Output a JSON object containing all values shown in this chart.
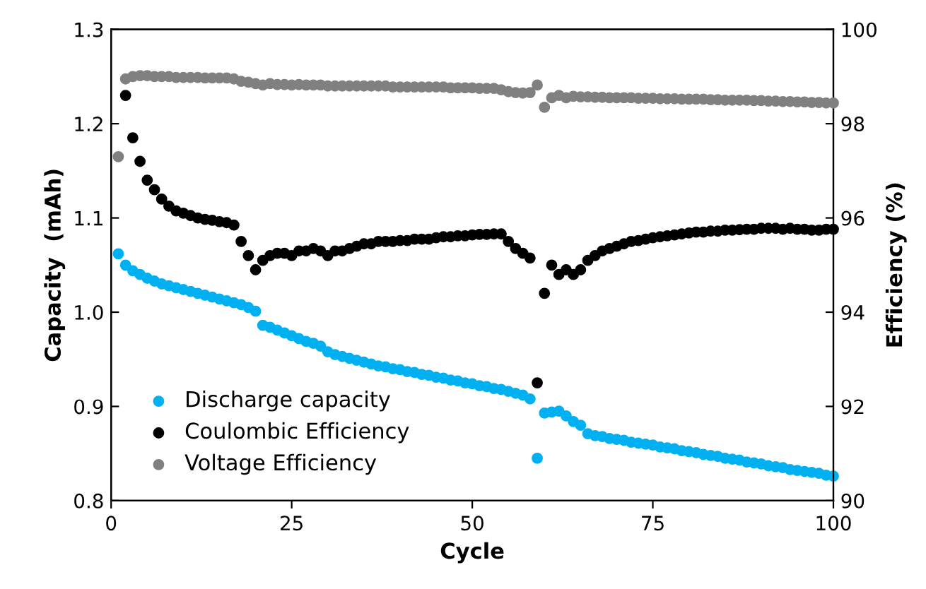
{
  "chart_data": {
    "type": "scatter",
    "xlabel": "Cycle",
    "ylabel": "Capacity  (mAh)",
    "y2label": "Efficiency (%)",
    "x": [
      1,
      2,
      3,
      4,
      5,
      6,
      7,
      8,
      9,
      10,
      11,
      12,
      13,
      14,
      15,
      16,
      17,
      18,
      19,
      20,
      21,
      22,
      23,
      24,
      25,
      26,
      27,
      28,
      29,
      30,
      31,
      32,
      33,
      34,
      35,
      36,
      37,
      38,
      39,
      40,
      41,
      42,
      43,
      44,
      45,
      46,
      47,
      48,
      49,
      50,
      51,
      52,
      53,
      54,
      55,
      56,
      57,
      58,
      59,
      60,
      61,
      62,
      63,
      64,
      65,
      66,
      67,
      68,
      69,
      70,
      71,
      72,
      73,
      74,
      75,
      76,
      77,
      78,
      79,
      80,
      81,
      82,
      83,
      84,
      85,
      86,
      87,
      88,
      89,
      90,
      91,
      92,
      93,
      94,
      95,
      96,
      97,
      98,
      99,
      100
    ],
    "xlim": [
      0,
      100
    ],
    "xticks": [
      0,
      25,
      50,
      75,
      100
    ],
    "ylim": [
      0.8,
      1.3
    ],
    "yticks": [
      {
        "value": 0.8,
        "label": "0.8"
      },
      {
        "value": 0.9,
        "label": "0.9"
      },
      {
        "value": 1.0,
        "label": "1.0"
      },
      {
        "value": 1.1,
        "label": "1.1"
      },
      {
        "value": 1.2,
        "label": "1.2"
      },
      {
        "value": 1.3,
        "label": "1.3"
      }
    ],
    "y2lim": [
      90,
      100
    ],
    "y2ticks": [
      90,
      92,
      94,
      96,
      98,
      100
    ],
    "marker": "circle",
    "grid": false,
    "legend": "bottom left",
    "series": [
      {
        "name": "Discharge capacity",
        "color": "#00b0f0",
        "values": [
          1.062,
          1.05,
          1.044,
          1.04,
          1.036,
          1.033,
          1.03,
          1.028,
          1.026,
          1.024,
          1.022,
          1.02,
          1.018,
          1.016,
          1.014,
          1.012,
          1.01,
          1.008,
          1.005,
          1.001,
          0.986,
          0.984,
          0.981,
          0.978,
          0.975,
          0.972,
          0.969,
          0.967,
          0.964,
          0.958,
          0.955,
          0.953,
          0.951,
          0.949,
          0.947,
          0.945,
          0.943,
          0.942,
          0.94,
          0.939,
          0.937,
          0.936,
          0.934,
          0.933,
          0.931,
          0.93,
          0.928,
          0.927,
          0.925,
          0.924,
          0.922,
          0.921,
          0.919,
          0.918,
          0.916,
          0.914,
          0.912,
          0.908,
          0.845,
          0.893,
          0.894,
          0.895,
          0.89,
          0.884,
          0.88,
          0.871,
          0.869,
          0.868,
          0.866,
          0.865,
          0.864,
          0.862,
          0.861,
          0.86,
          0.859,
          0.857,
          0.856,
          0.855,
          0.853,
          0.852,
          0.851,
          0.849,
          0.848,
          0.847,
          0.845,
          0.844,
          0.843,
          0.841,
          0.84,
          0.839,
          0.837,
          0.836,
          0.835,
          0.833,
          0.832,
          0.831,
          0.83,
          0.829,
          0.827,
          0.826
        ]
      },
      {
        "name": "Coulombic Efficiency",
        "color": "#000000",
        "axis": "y2",
        "values": [
          null,
          98.6,
          97.7,
          97.2,
          96.8,
          96.6,
          96.4,
          96.25,
          96.15,
          96.1,
          96.05,
          96.0,
          95.97,
          95.95,
          95.92,
          95.9,
          95.85,
          95.5,
          95.2,
          94.9,
          95.1,
          95.2,
          95.25,
          95.25,
          95.2,
          95.3,
          95.3,
          95.35,
          95.3,
          95.2,
          95.3,
          95.3,
          95.35,
          95.4,
          95.45,
          95.45,
          95.5,
          95.5,
          95.5,
          95.52,
          95.52,
          95.55,
          95.55,
          95.55,
          95.58,
          95.6,
          95.6,
          95.62,
          95.62,
          95.64,
          95.65,
          95.65,
          95.66,
          95.66,
          95.5,
          95.35,
          95.25,
          95.15,
          92.5,
          94.4,
          95.0,
          94.8,
          94.9,
          94.8,
          94.9,
          95.1,
          95.2,
          95.3,
          95.35,
          95.4,
          95.45,
          95.5,
          95.52,
          95.55,
          95.58,
          95.6,
          95.62,
          95.64,
          95.66,
          95.68,
          95.7,
          95.7,
          95.72,
          95.72,
          95.74,
          95.74,
          95.75,
          95.76,
          95.76,
          95.78,
          95.78,
          95.78,
          95.76,
          95.78,
          95.76,
          95.76,
          95.74,
          95.74,
          95.76,
          95.76
        ]
      },
      {
        "name": "Voltage Efficiency",
        "color": "#808080",
        "axis": "y2",
        "values": [
          97.3,
          98.95,
          99.0,
          99.02,
          99.02,
          99.0,
          99.0,
          99.0,
          98.98,
          98.98,
          98.98,
          98.98,
          98.97,
          98.97,
          98.97,
          98.97,
          98.95,
          98.9,
          98.88,
          98.85,
          98.82,
          98.85,
          98.83,
          98.83,
          98.82,
          98.83,
          98.82,
          98.82,
          98.82,
          98.8,
          98.8,
          98.8,
          98.8,
          98.8,
          98.8,
          98.8,
          98.8,
          98.8,
          98.78,
          98.78,
          98.78,
          98.78,
          98.78,
          98.78,
          98.78,
          98.78,
          98.76,
          98.76,
          98.76,
          98.76,
          98.75,
          98.75,
          98.75,
          98.72,
          98.68,
          98.66,
          98.65,
          98.66,
          98.82,
          98.35,
          98.55,
          98.6,
          98.55,
          98.58,
          98.57,
          98.57,
          98.56,
          98.56,
          98.55,
          98.55,
          98.55,
          98.55,
          98.54,
          98.54,
          98.54,
          98.53,
          98.53,
          98.53,
          98.52,
          98.52,
          98.52,
          98.52,
          98.51,
          98.51,
          98.5,
          98.5,
          98.5,
          98.5,
          98.49,
          98.49,
          98.48,
          98.48,
          98.47,
          98.47,
          98.46,
          98.46,
          98.45,
          98.45,
          98.44,
          98.44
        ]
      }
    ]
  }
}
